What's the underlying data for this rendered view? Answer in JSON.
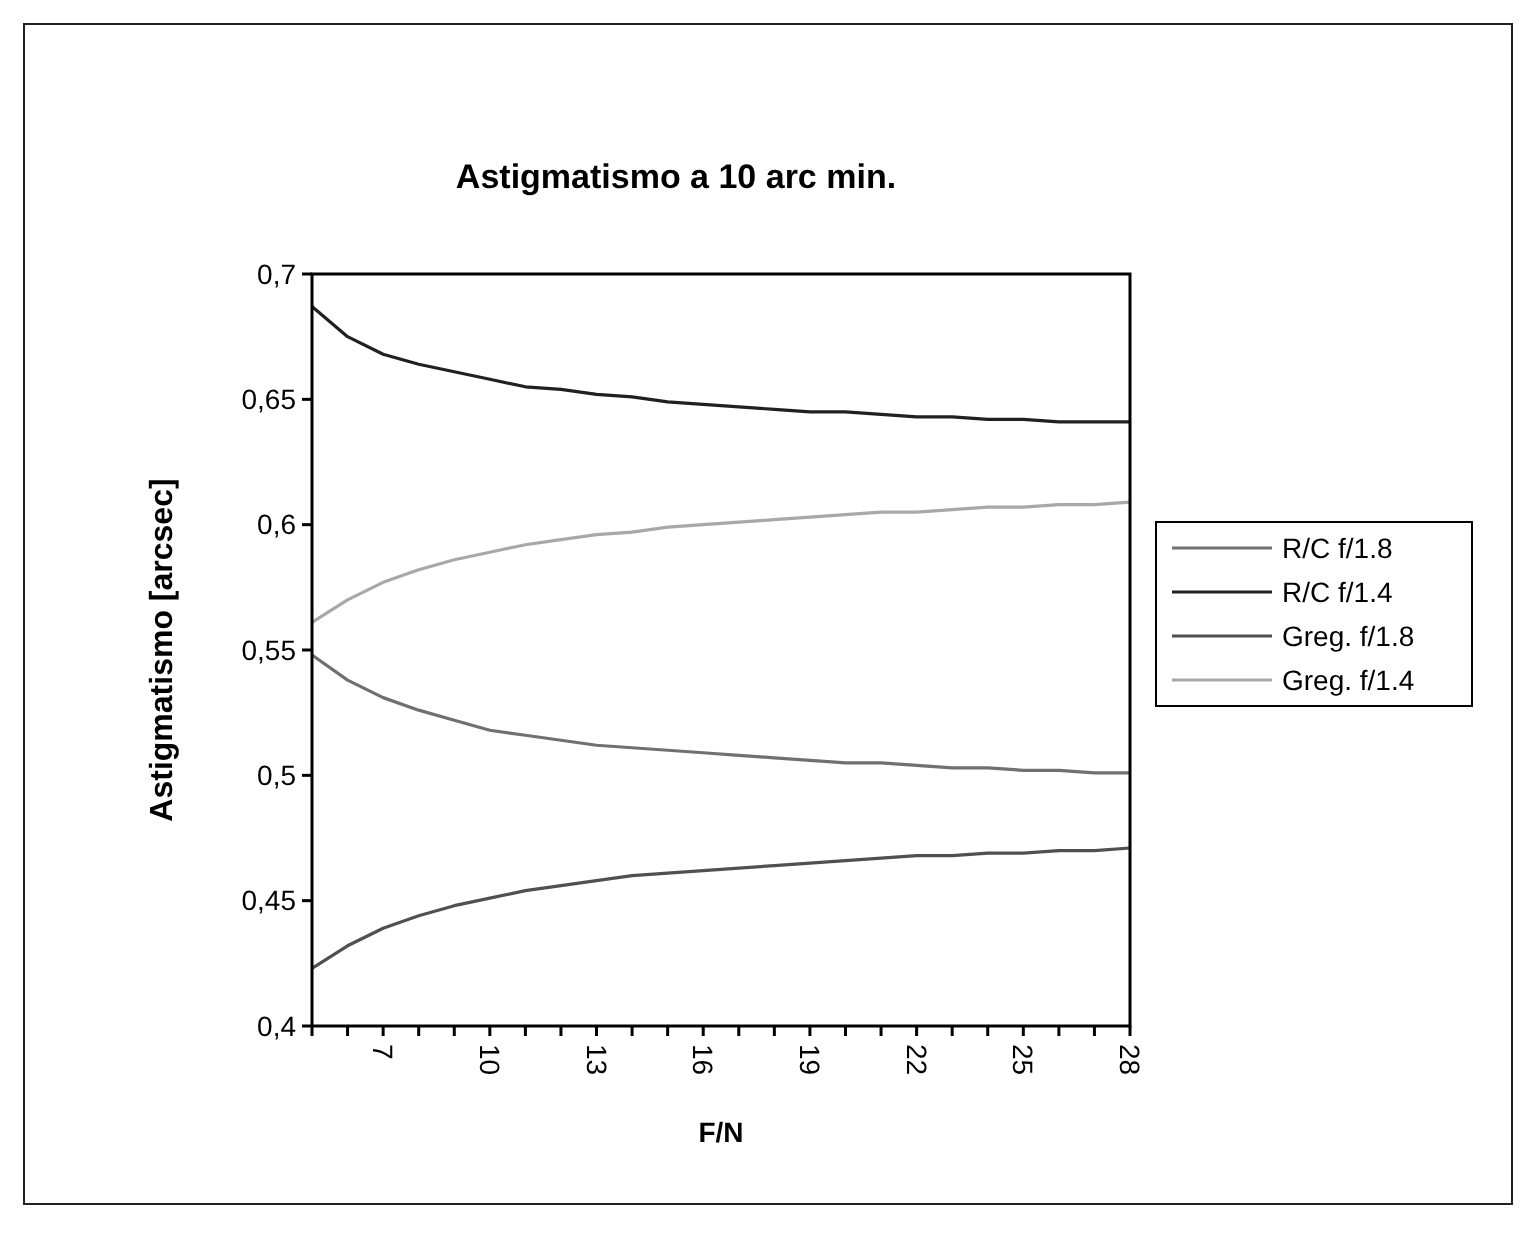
{
  "chart_data": {
    "type": "line",
    "title": "Astigmatismo a 10 arc min.",
    "xlabel": "F/N",
    "ylabel": "Astigmatismo [arcsec]",
    "categories": [
      null,
      null,
      "7",
      null,
      null,
      "10",
      null,
      null,
      "13",
      null,
      null,
      "16",
      null,
      null,
      "19",
      null,
      null,
      "22",
      null,
      null,
      "25",
      null,
      null,
      "28"
    ],
    "ylim": [
      0.4,
      0.7
    ],
    "yticks": [
      {
        "value": 0.4,
        "label": "0,4"
      },
      {
        "value": 0.45,
        "label": "0,45"
      },
      {
        "value": 0.5,
        "label": "0,5"
      },
      {
        "value": 0.55,
        "label": "0,55"
      },
      {
        "value": 0.6,
        "label": "0,6"
      },
      {
        "value": 0.65,
        "label": "0,65"
      },
      {
        "value": 0.7,
        "label": "0,7"
      }
    ],
    "legend": "right",
    "grid": false,
    "marker": "none",
    "line_style": "solid",
    "series": [
      {
        "name": "R/C f/1.8",
        "color": "#707070",
        "values": [
          0.548,
          0.538,
          0.531,
          0.526,
          0.522,
          0.518,
          0.516,
          0.514,
          0.512,
          0.511,
          0.51,
          0.509,
          0.508,
          0.507,
          0.506,
          0.505,
          0.505,
          0.504,
          0.503,
          0.503,
          0.502,
          0.502,
          0.501,
          0.501
        ]
      },
      {
        "name": "R/C f/1.4",
        "color": "#202020",
        "values": [
          0.687,
          0.675,
          0.668,
          0.664,
          0.661,
          0.658,
          0.655,
          0.654,
          0.652,
          0.651,
          0.649,
          0.648,
          0.647,
          0.646,
          0.645,
          0.645,
          0.644,
          0.643,
          0.643,
          0.642,
          0.642,
          0.641,
          0.641,
          0.641
        ]
      },
      {
        "name": "Greg. f/1.8",
        "color": "#505050",
        "values": [
          0.423,
          0.432,
          0.439,
          0.444,
          0.448,
          0.451,
          0.454,
          0.456,
          0.458,
          0.46,
          0.461,
          0.462,
          0.463,
          0.464,
          0.465,
          0.466,
          0.467,
          0.468,
          0.468,
          0.469,
          0.469,
          0.47,
          0.47,
          0.471
        ]
      },
      {
        "name": "Greg. f/1.4",
        "color": "#a8a8a8",
        "values": [
          0.561,
          0.57,
          0.577,
          0.582,
          0.586,
          0.589,
          0.592,
          0.594,
          0.596,
          0.597,
          0.599,
          0.6,
          0.601,
          0.602,
          0.603,
          0.604,
          0.605,
          0.605,
          0.606,
          0.607,
          0.607,
          0.608,
          0.608,
          0.609
        ]
      }
    ]
  }
}
